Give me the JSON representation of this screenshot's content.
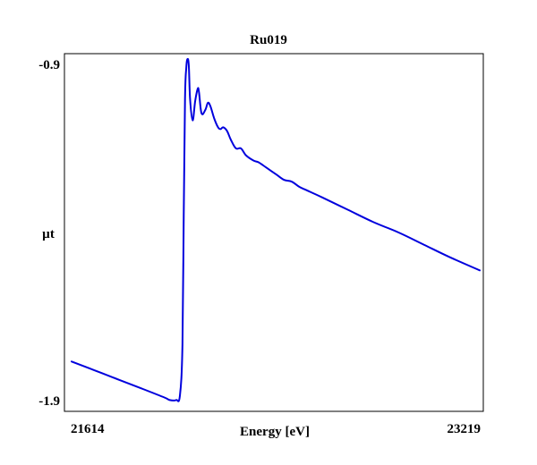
{
  "chart_data": {
    "type": "line",
    "title": "Ru019",
    "xlabel": "Energy [eV]",
    "ylabel": "µt",
    "xlim": [
      21614,
      23219
    ],
    "ylim": [
      -1.9,
      -0.9
    ],
    "x_tick_labels": [
      "21614",
      "23219"
    ],
    "y_tick_labels": [
      "-0.9",
      "-1.9"
    ],
    "grid": false,
    "line_color": "#0000dd",
    "series": [
      {
        "x": [
          21614,
          21700,
          21800,
          21900,
          21980,
          22000,
          22025,
          22040,
          22050,
          22055,
          22060,
          22065,
          22070,
          22075,
          22080,
          22090,
          22100,
          22110,
          22115,
          22125,
          22140,
          22150,
          22160,
          22175,
          22190,
          22200,
          22210,
          22225,
          22240,
          22260,
          22280,
          22300,
          22330,
          22350,
          22380,
          22420,
          22450,
          22480,
          22510,
          22540,
          22600,
          22700,
          22800,
          22900,
          23000,
          23100,
          23219
        ],
        "y": [
          -1.768,
          -1.792,
          -1.82,
          -1.848,
          -1.871,
          -1.878,
          -1.878,
          -1.865,
          -1.72,
          -1.35,
          -1.02,
          -0.93,
          -0.905,
          -0.925,
          -1.02,
          -1.08,
          -1.025,
          -0.99,
          -1.0,
          -1.06,
          -1.05,
          -1.03,
          -1.04,
          -1.075,
          -1.1,
          -1.105,
          -1.1,
          -1.11,
          -1.135,
          -1.16,
          -1.16,
          -1.18,
          -1.195,
          -1.2,
          -1.215,
          -1.235,
          -1.25,
          -1.255,
          -1.27,
          -1.28,
          -1.3,
          -1.335,
          -1.37,
          -1.4,
          -1.435,
          -1.47,
          -1.508
        ]
      }
    ]
  }
}
